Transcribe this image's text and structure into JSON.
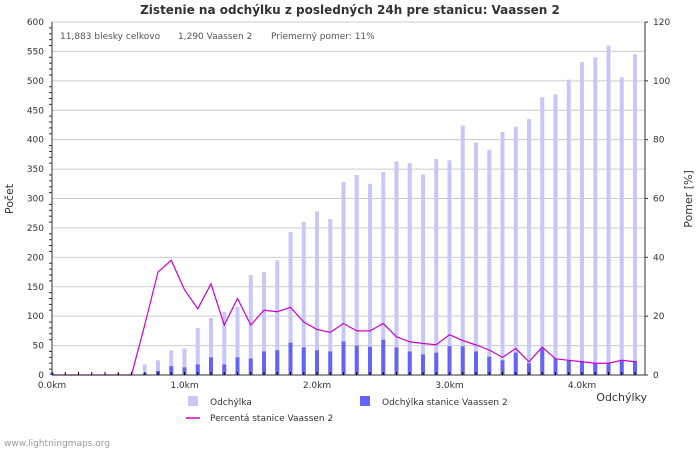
{
  "chart_data": {
    "type": "bar",
    "title": "Zistenie na odchýlku z posledných 24h pre stanicu: Vaassen 2",
    "stats": [
      "11,883 blesky celkovo",
      "1,290 Vaassen 2",
      "Priemerný pomer: 11%"
    ],
    "ylabel": "Počet",
    "y2label": "Pomer [%]",
    "xlabel": "Odchýlky",
    "ylim": [
      0,
      600
    ],
    "y2lim": [
      0,
      120
    ],
    "yticks": [
      "0",
      "50",
      "100",
      "150",
      "200",
      "250",
      "300",
      "350",
      "400",
      "450",
      "500",
      "550",
      "600"
    ],
    "y2ticks": [
      "0",
      "20",
      "40",
      "60",
      "80",
      "100",
      "120"
    ],
    "xticks": [
      "0.0km",
      "1.0km",
      "2.0km",
      "3.0km",
      "4.0km"
    ],
    "x": [
      0.0,
      0.1,
      0.2,
      0.3,
      0.4,
      0.5,
      0.6,
      0.7,
      0.8,
      0.9,
      1.0,
      1.1,
      1.2,
      1.3,
      1.4,
      1.5,
      1.6,
      1.7,
      1.8,
      1.9,
      2.0,
      2.1,
      2.2,
      2.3,
      2.4,
      2.5,
      2.6,
      2.7,
      2.8,
      2.9,
      3.0,
      3.1,
      3.2,
      3.3,
      3.4,
      3.5,
      3.6,
      3.7,
      3.8,
      3.9,
      4.0,
      4.1,
      4.2,
      4.3,
      4.4
    ],
    "series": [
      {
        "name": "Odchýlka",
        "color": "#c8c8f8",
        "values": [
          5,
          0,
          0,
          0,
          0,
          3,
          3,
          18,
          25,
          42,
          45,
          80,
          97,
          107,
          116,
          170,
          175,
          195,
          243,
          260,
          278,
          265,
          328,
          340,
          325,
          345,
          363,
          360,
          341,
          367,
          365,
          424,
          395,
          383,
          413,
          422,
          435,
          472,
          477,
          502,
          532,
          540,
          560,
          506,
          545
        ]
      },
      {
        "name": "Odchýlka stanice Vaassen 2",
        "color": "#6464f8",
        "values": [
          3,
          0,
          0,
          0,
          0,
          0,
          0,
          3,
          7,
          15,
          13,
          18,
          30,
          18,
          30,
          28,
          40,
          42,
          55,
          47,
          42,
          40,
          57,
          50,
          48,
          60,
          47,
          40,
          35,
          38,
          49,
          49,
          40,
          31,
          25,
          38,
          20,
          45,
          28,
          24,
          24,
          20,
          21,
          25,
          24
        ]
      },
      {
        "name": "Percentá stanice Vaassen 2",
        "color": "#cc00cc",
        "type": "line",
        "axis": "right",
        "values": [
          0,
          0,
          0,
          0,
          0,
          0,
          0,
          17,
          35,
          39,
          29,
          22.5,
          31,
          17,
          26,
          17,
          22,
          21.5,
          23,
          18,
          15.5,
          14.5,
          17.5,
          15,
          15,
          17.5,
          13,
          11.3,
          10.7,
          10.3,
          13.7,
          11.7,
          10.2,
          8.5,
          6,
          9,
          4.5,
          9.5,
          5.5,
          5,
          4.5,
          4,
          4,
          5,
          4.5
        ]
      }
    ]
  },
  "footer": "www.lightningmaps.org"
}
